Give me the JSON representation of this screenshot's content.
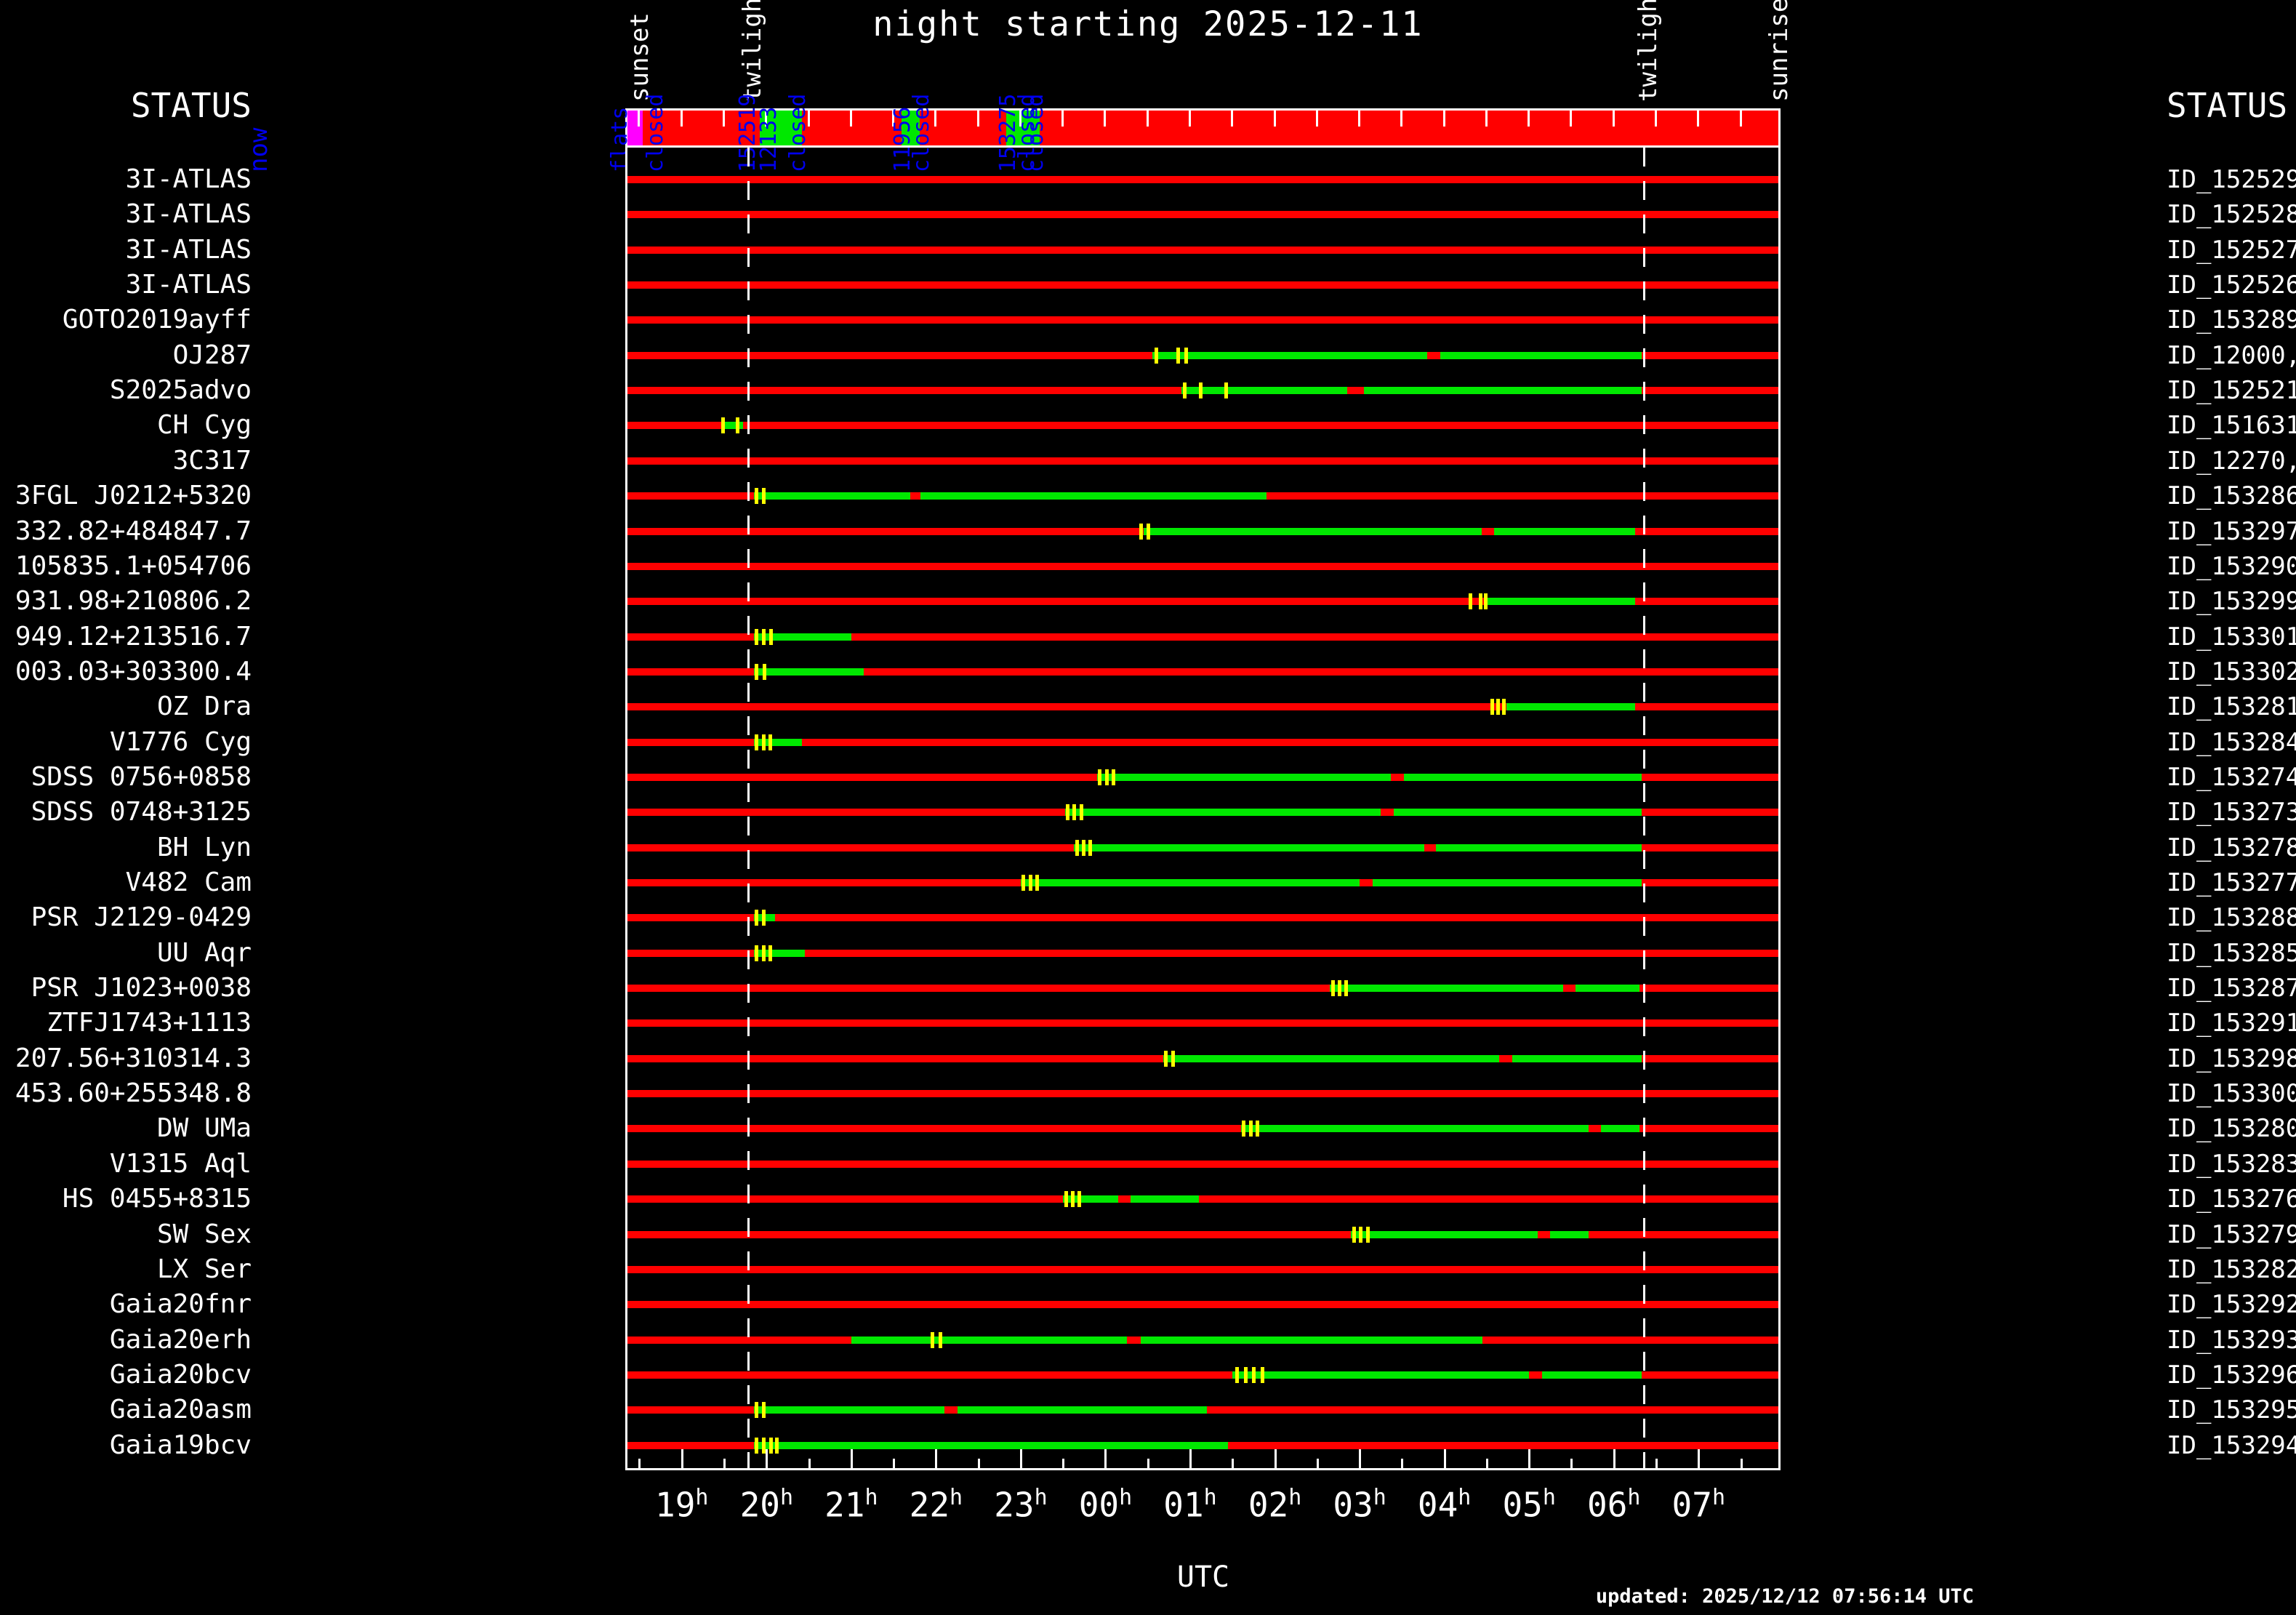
{
  "title": "night starting 2025-12-11",
  "status_header_left": "STATUS",
  "status_header_right": "STATUS",
  "now_label": "now",
  "utc_label": "UTC",
  "updated_text": "updated: 2025/12/12 07:56:14 UTC",
  "colors": {
    "background": "#000000",
    "bar_red": "#ff0000",
    "window_green": "#00e800",
    "marker_yellow": "#ffff00",
    "flats_magenta": "#ff00ff",
    "annotation_blue": "#0000ee",
    "frame_white": "#ffffff"
  },
  "chart_data": {
    "type": "bar",
    "subtype": "observation-schedule-timeline",
    "title": "night starting 2025-12-11",
    "xlabel": "UTC",
    "x_domain_utc_hours": [
      18.35,
      31.95
    ],
    "grid": false,
    "hour_ticks": [
      {
        "text": "19",
        "sup": "h",
        "utc": 19
      },
      {
        "text": "20",
        "sup": "h",
        "utc": 20
      },
      {
        "text": "21",
        "sup": "h",
        "utc": 21
      },
      {
        "text": "22",
        "sup": "h",
        "utc": 22
      },
      {
        "text": "23",
        "sup": "h",
        "utc": 23
      },
      {
        "text": "00",
        "sup": "h",
        "utc": 24
      },
      {
        "text": "01",
        "sup": "h",
        "utc": 25
      },
      {
        "text": "02",
        "sup": "h",
        "utc": 26
      },
      {
        "text": "03",
        "sup": "h",
        "utc": 27
      },
      {
        "text": "04",
        "sup": "h",
        "utc": 28
      },
      {
        "text": "05",
        "sup": "h",
        "utc": 29
      },
      {
        "text": "06",
        "sup": "h",
        "utc": 30
      },
      {
        "text": "07",
        "sup": "h",
        "utc": 31
      }
    ],
    "top_annotations": [
      {
        "label": "sunset",
        "utc": 18.45
      },
      {
        "label": "twilight",
        "utc": 19.78
      },
      {
        "label": "twilight",
        "utc": 30.35
      },
      {
        "label": "sunrise",
        "utc": 31.9
      }
    ],
    "twilight_lines_utc": [
      19.78,
      30.35
    ],
    "status_bar": {
      "segments": [
        {
          "color": "#ff00ff",
          "start": 18.35,
          "end": 18.55
        },
        {
          "color": "#00e800",
          "start": 19.93,
          "end": 20.43
        },
        {
          "color": "#00e800",
          "start": 21.6,
          "end": 21.82
        },
        {
          "color": "#00e800",
          "start": 22.84,
          "end": 23.23
        }
      ],
      "event_labels": [
        {
          "text": "flats",
          "utc": 18.22
        },
        {
          "text": "closed",
          "utc": 18.64
        },
        {
          "text": "152519",
          "utc": 19.73
        },
        {
          "text": "12133",
          "utc": 19.98
        },
        {
          "text": "closed",
          "utc": 20.32
        },
        {
          "text": "11956",
          "utc": 21.56
        },
        {
          "text": "closed",
          "utc": 21.78
        },
        {
          "text": "153275",
          "utc": 22.8
        },
        {
          "text": "closed",
          "utc": 23.03
        },
        {
          "text": "closed",
          "utc": 23.13
        }
      ]
    },
    "rows": [
      {
        "target": "3I-ATLAS",
        "status_id": "ID_152529",
        "green_windows_utc": [],
        "yellow_marks_utc": []
      },
      {
        "target": "3I-ATLAS",
        "status_id": "ID_152528",
        "green_windows_utc": [],
        "yellow_marks_utc": []
      },
      {
        "target": "3I-ATLAS",
        "status_id": "ID_152527",
        "green_windows_utc": [],
        "yellow_marks_utc": []
      },
      {
        "target": "3I-ATLAS",
        "status_id": "ID_152526",
        "green_windows_utc": [],
        "yellow_marks_utc": []
      },
      {
        "target": "GOTO2019ayff",
        "status_id": "ID_153289",
        "green_windows_utc": [],
        "yellow_marks_utc": []
      },
      {
        "target": "OJ287",
        "status_id": "ID_12000,",
        "green_windows_utc": [
          [
            24.55,
            27.8
          ],
          [
            27.95,
            30.33
          ]
        ],
        "yellow_marks_utc": [
          24.6,
          24.85,
          24.95
        ]
      },
      {
        "target": "S2025advo",
        "status_id": "ID_152521",
        "green_windows_utc": [
          [
            24.9,
            26.85
          ],
          [
            27.05,
            30.33
          ]
        ],
        "yellow_marks_utc": [
          24.93,
          25.12,
          25.42
        ]
      },
      {
        "target": "CH Cyg",
        "status_id": "ID_151631",
        "green_windows_utc": [
          [
            19.47,
            19.72
          ]
        ],
        "yellow_marks_utc": [
          19.48,
          19.65
        ]
      },
      {
        "target": "3C317",
        "status_id": "ID_12270,",
        "green_windows_utc": [],
        "yellow_marks_utc": []
      },
      {
        "target": "3FGL J0212+5320",
        "status_id": "ID_153286",
        "green_windows_utc": [
          [
            19.85,
            21.7
          ],
          [
            21.82,
            25.9
          ]
        ],
        "yellow_marks_utc": [
          19.88,
          19.96
        ]
      },
      {
        "target": "332.82+484847.7",
        "status_id": "ID_153297",
        "green_windows_utc": [
          [
            24.45,
            28.44
          ],
          [
            28.59,
            30.25
          ]
        ],
        "yellow_marks_utc": [
          24.42,
          24.5
        ]
      },
      {
        "target": "105835.1+054706",
        "status_id": "ID_153290",
        "green_windows_utc": [],
        "yellow_marks_utc": []
      },
      {
        "target": "931.98+210806.2",
        "status_id": "ID_153299",
        "green_windows_utc": [
          [
            28.5,
            30.25
          ]
        ],
        "yellow_marks_utc": [
          28.3,
          28.42,
          28.48
        ]
      },
      {
        "target": "949.12+213516.7",
        "status_id": "ID_153301",
        "green_windows_utc": [
          [
            19.85,
            21.0
          ]
        ],
        "yellow_marks_utc": [
          19.88,
          19.96,
          20.05
        ]
      },
      {
        "target": "003.03+303300.4",
        "status_id": "ID_153302",
        "green_windows_utc": [
          [
            19.85,
            21.15
          ]
        ],
        "yellow_marks_utc": [
          19.88,
          19.97
        ]
      },
      {
        "target": "OZ Dra",
        "status_id": "ID_153281",
        "green_windows_utc": [
          [
            28.73,
            30.25
          ]
        ],
        "yellow_marks_utc": [
          28.56,
          28.63,
          28.7
        ]
      },
      {
        "target": "V1776 Cyg",
        "status_id": "ID_153284",
        "green_windows_utc": [
          [
            19.85,
            20.42
          ]
        ],
        "yellow_marks_utc": [
          19.88,
          19.96,
          20.04
        ]
      },
      {
        "target": "SDSS 0756+0858",
        "status_id": "ID_153274",
        "green_windows_utc": [
          [
            23.9,
            27.37
          ],
          [
            27.52,
            30.33
          ]
        ],
        "yellow_marks_utc": [
          23.93,
          24.01,
          24.09
        ]
      },
      {
        "target": "SDSS 0748+3125",
        "status_id": "ID_153273",
        "green_windows_utc": [
          [
            23.52,
            27.25
          ],
          [
            27.4,
            30.33
          ]
        ],
        "yellow_marks_utc": [
          23.55,
          23.63,
          23.71
        ]
      },
      {
        "target": "BH Lyn",
        "status_id": "ID_153278",
        "green_windows_utc": [
          [
            23.63,
            27.76
          ],
          [
            27.9,
            30.33
          ]
        ],
        "yellow_marks_utc": [
          23.66,
          23.74,
          23.82
        ]
      },
      {
        "target": "V482 Cam",
        "status_id": "ID_153277",
        "green_windows_utc": [
          [
            23.0,
            27.0
          ],
          [
            27.15,
            30.33
          ]
        ],
        "yellow_marks_utc": [
          23.03,
          23.11,
          23.19
        ]
      },
      {
        "target": "PSR J2129-0429",
        "status_id": "ID_153288",
        "green_windows_utc": [
          [
            19.85,
            20.1
          ]
        ],
        "yellow_marks_utc": [
          19.88,
          19.96
        ]
      },
      {
        "target": "UU Aqr",
        "status_id": "ID_153285",
        "green_windows_utc": [
          [
            19.85,
            20.45
          ]
        ],
        "yellow_marks_utc": [
          19.88,
          19.96,
          20.04
        ]
      },
      {
        "target": "PSR J1023+0038",
        "status_id": "ID_153287",
        "green_windows_utc": [
          [
            26.65,
            29.4
          ],
          [
            29.55,
            30.3
          ]
        ],
        "yellow_marks_utc": [
          26.68,
          26.76,
          26.84
        ]
      },
      {
        "target": "ZTFJ1743+1113",
        "status_id": "ID_153291",
        "green_windows_utc": [],
        "yellow_marks_utc": []
      },
      {
        "target": "207.56+310314.3",
        "status_id": "ID_153298",
        "green_windows_utc": [
          [
            24.68,
            28.65
          ],
          [
            28.8,
            30.33
          ]
        ],
        "yellow_marks_utc": [
          24.71,
          24.79
        ]
      },
      {
        "target": "453.60+255348.8",
        "status_id": "ID_153300",
        "green_windows_utc": [],
        "yellow_marks_utc": []
      },
      {
        "target": "DW UMa",
        "status_id": "ID_153280",
        "green_windows_utc": [
          [
            25.6,
            29.7
          ],
          [
            29.85,
            30.3
          ]
        ],
        "yellow_marks_utc": [
          25.63,
          25.71,
          25.79
        ]
      },
      {
        "target": "V1315 Aql",
        "status_id": "ID_153283",
        "green_windows_utc": [],
        "yellow_marks_utc": []
      },
      {
        "target": "HS 0455+8315",
        "status_id": "ID_153276",
        "green_windows_utc": [
          [
            23.5,
            24.15
          ],
          [
            24.3,
            25.1
          ]
        ],
        "yellow_marks_utc": [
          23.53,
          23.61,
          23.69
        ]
      },
      {
        "target": "SW Sex",
        "status_id": "ID_153279",
        "green_windows_utc": [
          [
            26.9,
            29.1
          ],
          [
            29.25,
            29.7
          ]
        ],
        "yellow_marks_utc": [
          26.93,
          27.01,
          27.09
        ]
      },
      {
        "target": "LX Ser",
        "status_id": "ID_153282",
        "green_windows_utc": [],
        "yellow_marks_utc": []
      },
      {
        "target": "Gaia20fnr",
        "status_id": "ID_153292",
        "green_windows_utc": [],
        "yellow_marks_utc": []
      },
      {
        "target": "Gaia20erh",
        "status_id": "ID_153293",
        "green_windows_utc": [
          [
            21.0,
            24.25
          ],
          [
            24.42,
            28.45
          ]
        ],
        "yellow_marks_utc": [
          21.95,
          22.05
        ]
      },
      {
        "target": "Gaia20bcv",
        "status_id": "ID_153296",
        "green_windows_utc": [
          [
            25.5,
            29.0
          ],
          [
            29.15,
            30.33
          ]
        ],
        "yellow_marks_utc": [
          25.55,
          25.65,
          25.75,
          25.85
        ]
      },
      {
        "target": "Gaia20asm",
        "status_id": "ID_153295",
        "green_windows_utc": [
          [
            19.85,
            22.1
          ],
          [
            22.25,
            25.2
          ]
        ],
        "yellow_marks_utc": [
          19.88,
          19.96
        ]
      },
      {
        "target": "Gaia19bcv",
        "status_id": "ID_153294",
        "green_windows_utc": [
          [
            19.85,
            25.45
          ]
        ],
        "yellow_marks_utc": [
          19.88,
          19.96,
          20.05,
          20.12
        ]
      }
    ]
  }
}
